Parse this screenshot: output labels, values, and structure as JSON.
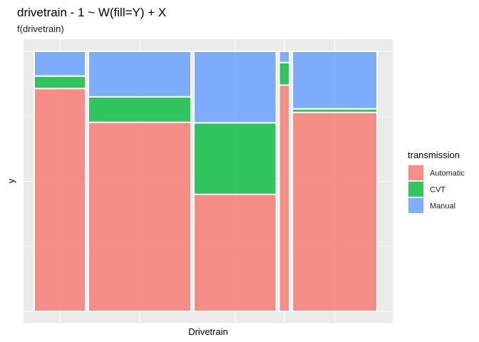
{
  "chart_data": {
    "type": "mosaic",
    "title": "drivetrain - 1 ~ W(fill=Y) + X",
    "subtitle": "f(drivetrain)",
    "xlabel": "Drivetrain",
    "ylabel": "y",
    "legend_title": "transmission",
    "legend_position": "right",
    "grid": true,
    "categories": [
      "",
      "",
      "",
      "",
      ""
    ],
    "widths": [
      0.203,
      0.406,
      0.326,
      0.041,
      0.335
    ],
    "series": [
      {
        "name": "Automatic",
        "color": "#F8766D",
        "values": [
          0.857,
          0.727,
          0.45,
          0.87,
          0.765
        ]
      },
      {
        "name": "CVT",
        "color": "#00BA38",
        "values": [
          0.048,
          0.098,
          0.275,
          0.087,
          0.014
        ]
      },
      {
        "name": "Manual",
        "color": "#619CFF",
        "values": [
          0.095,
          0.175,
          0.275,
          0.043,
          0.221
        ]
      }
    ]
  }
}
